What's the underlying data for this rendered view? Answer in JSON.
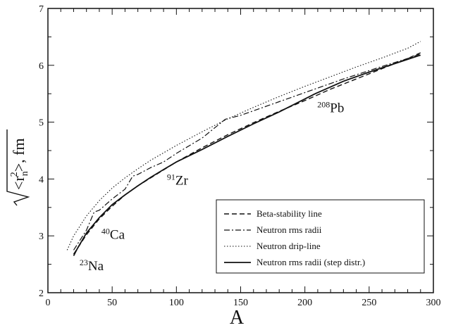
{
  "chart_data": {
    "type": "line",
    "title": "",
    "xlabel": "A",
    "ylabel": {
      "radicand_open": "<r",
      "sub": "n",
      "sup": "2",
      "radicand_close": ">",
      "unit": ", fm"
    },
    "xlim": [
      0,
      300
    ],
    "ylim": [
      2,
      7
    ],
    "x_ticks": [
      0,
      50,
      100,
      150,
      200,
      250,
      300
    ],
    "y_ticks": [
      2,
      3,
      4,
      5,
      6,
      7
    ],
    "grid": false,
    "legend_position": "bottom-right",
    "series": [
      {
        "name": "Beta-stability line",
        "style": "dashed",
        "points": [
          [
            20,
            2.68
          ],
          [
            30,
            3.02
          ],
          [
            40,
            3.3
          ],
          [
            50,
            3.52
          ],
          [
            60,
            3.72
          ],
          [
            70,
            3.88
          ],
          [
            80,
            4.02
          ],
          [
            90,
            4.16
          ],
          [
            100,
            4.3
          ],
          [
            120,
            4.55
          ],
          [
            140,
            4.78
          ],
          [
            160,
            4.99
          ],
          [
            180,
            5.19
          ],
          [
            200,
            5.38
          ],
          [
            220,
            5.58
          ],
          [
            240,
            5.76
          ],
          [
            260,
            5.94
          ],
          [
            280,
            6.12
          ],
          [
            290,
            6.22
          ]
        ]
      },
      {
        "name": "Neutron rms radii",
        "style": "dashdot",
        "points": [
          [
            20,
            2.75
          ],
          [
            30,
            3.1
          ],
          [
            36,
            3.42
          ],
          [
            40,
            3.45
          ],
          [
            50,
            3.65
          ],
          [
            60,
            3.82
          ],
          [
            66,
            4.05
          ],
          [
            70,
            4.08
          ],
          [
            80,
            4.2
          ],
          [
            90,
            4.3
          ],
          [
            100,
            4.45
          ],
          [
            120,
            4.72
          ],
          [
            138,
            5.05
          ],
          [
            150,
            5.12
          ],
          [
            180,
            5.36
          ],
          [
            210,
            5.6
          ],
          [
            230,
            5.76
          ],
          [
            260,
            5.98
          ],
          [
            280,
            6.12
          ],
          [
            290,
            6.2
          ]
        ]
      },
      {
        "name": "Neutron drip-line",
        "style": "dotted",
        "points": [
          [
            15,
            2.75
          ],
          [
            20,
            3.0
          ],
          [
            30,
            3.35
          ],
          [
            40,
            3.62
          ],
          [
            50,
            3.84
          ],
          [
            60,
            4.02
          ],
          [
            70,
            4.18
          ],
          [
            80,
            4.33
          ],
          [
            90,
            4.46
          ],
          [
            100,
            4.59
          ],
          [
            120,
            4.83
          ],
          [
            140,
            5.06
          ],
          [
            160,
            5.26
          ],
          [
            180,
            5.45
          ],
          [
            200,
            5.63
          ],
          [
            220,
            5.8
          ],
          [
            240,
            5.97
          ],
          [
            260,
            6.13
          ],
          [
            280,
            6.3
          ],
          [
            290,
            6.42
          ]
        ]
      },
      {
        "name": "Neutron rms radii (step distr.)",
        "style": "solid",
        "points": [
          [
            20,
            2.65
          ],
          [
            23,
            2.78
          ],
          [
            30,
            3.05
          ],
          [
            40,
            3.32
          ],
          [
            50,
            3.55
          ],
          [
            60,
            3.72
          ],
          [
            70,
            3.88
          ],
          [
            80,
            4.03
          ],
          [
            91,
            4.18
          ],
          [
            100,
            4.3
          ],
          [
            120,
            4.52
          ],
          [
            140,
            4.75
          ],
          [
            160,
            4.97
          ],
          [
            180,
            5.18
          ],
          [
            208,
            5.5
          ],
          [
            230,
            5.72
          ],
          [
            250,
            5.88
          ],
          [
            270,
            6.03
          ],
          [
            290,
            6.18
          ]
        ]
      }
    ],
    "annotations": [
      {
        "sup": "23",
        "text": "Na",
        "x": 23,
        "y": 2.62
      },
      {
        "sup": "40",
        "text": "Ca",
        "x": 40,
        "y": 3.17
      },
      {
        "sup": "91",
        "text": "Zr",
        "x": 91,
        "y": 4.12
      },
      {
        "sup": "208",
        "text": "Pb",
        "x": 208,
        "y": 5.4
      }
    ]
  }
}
